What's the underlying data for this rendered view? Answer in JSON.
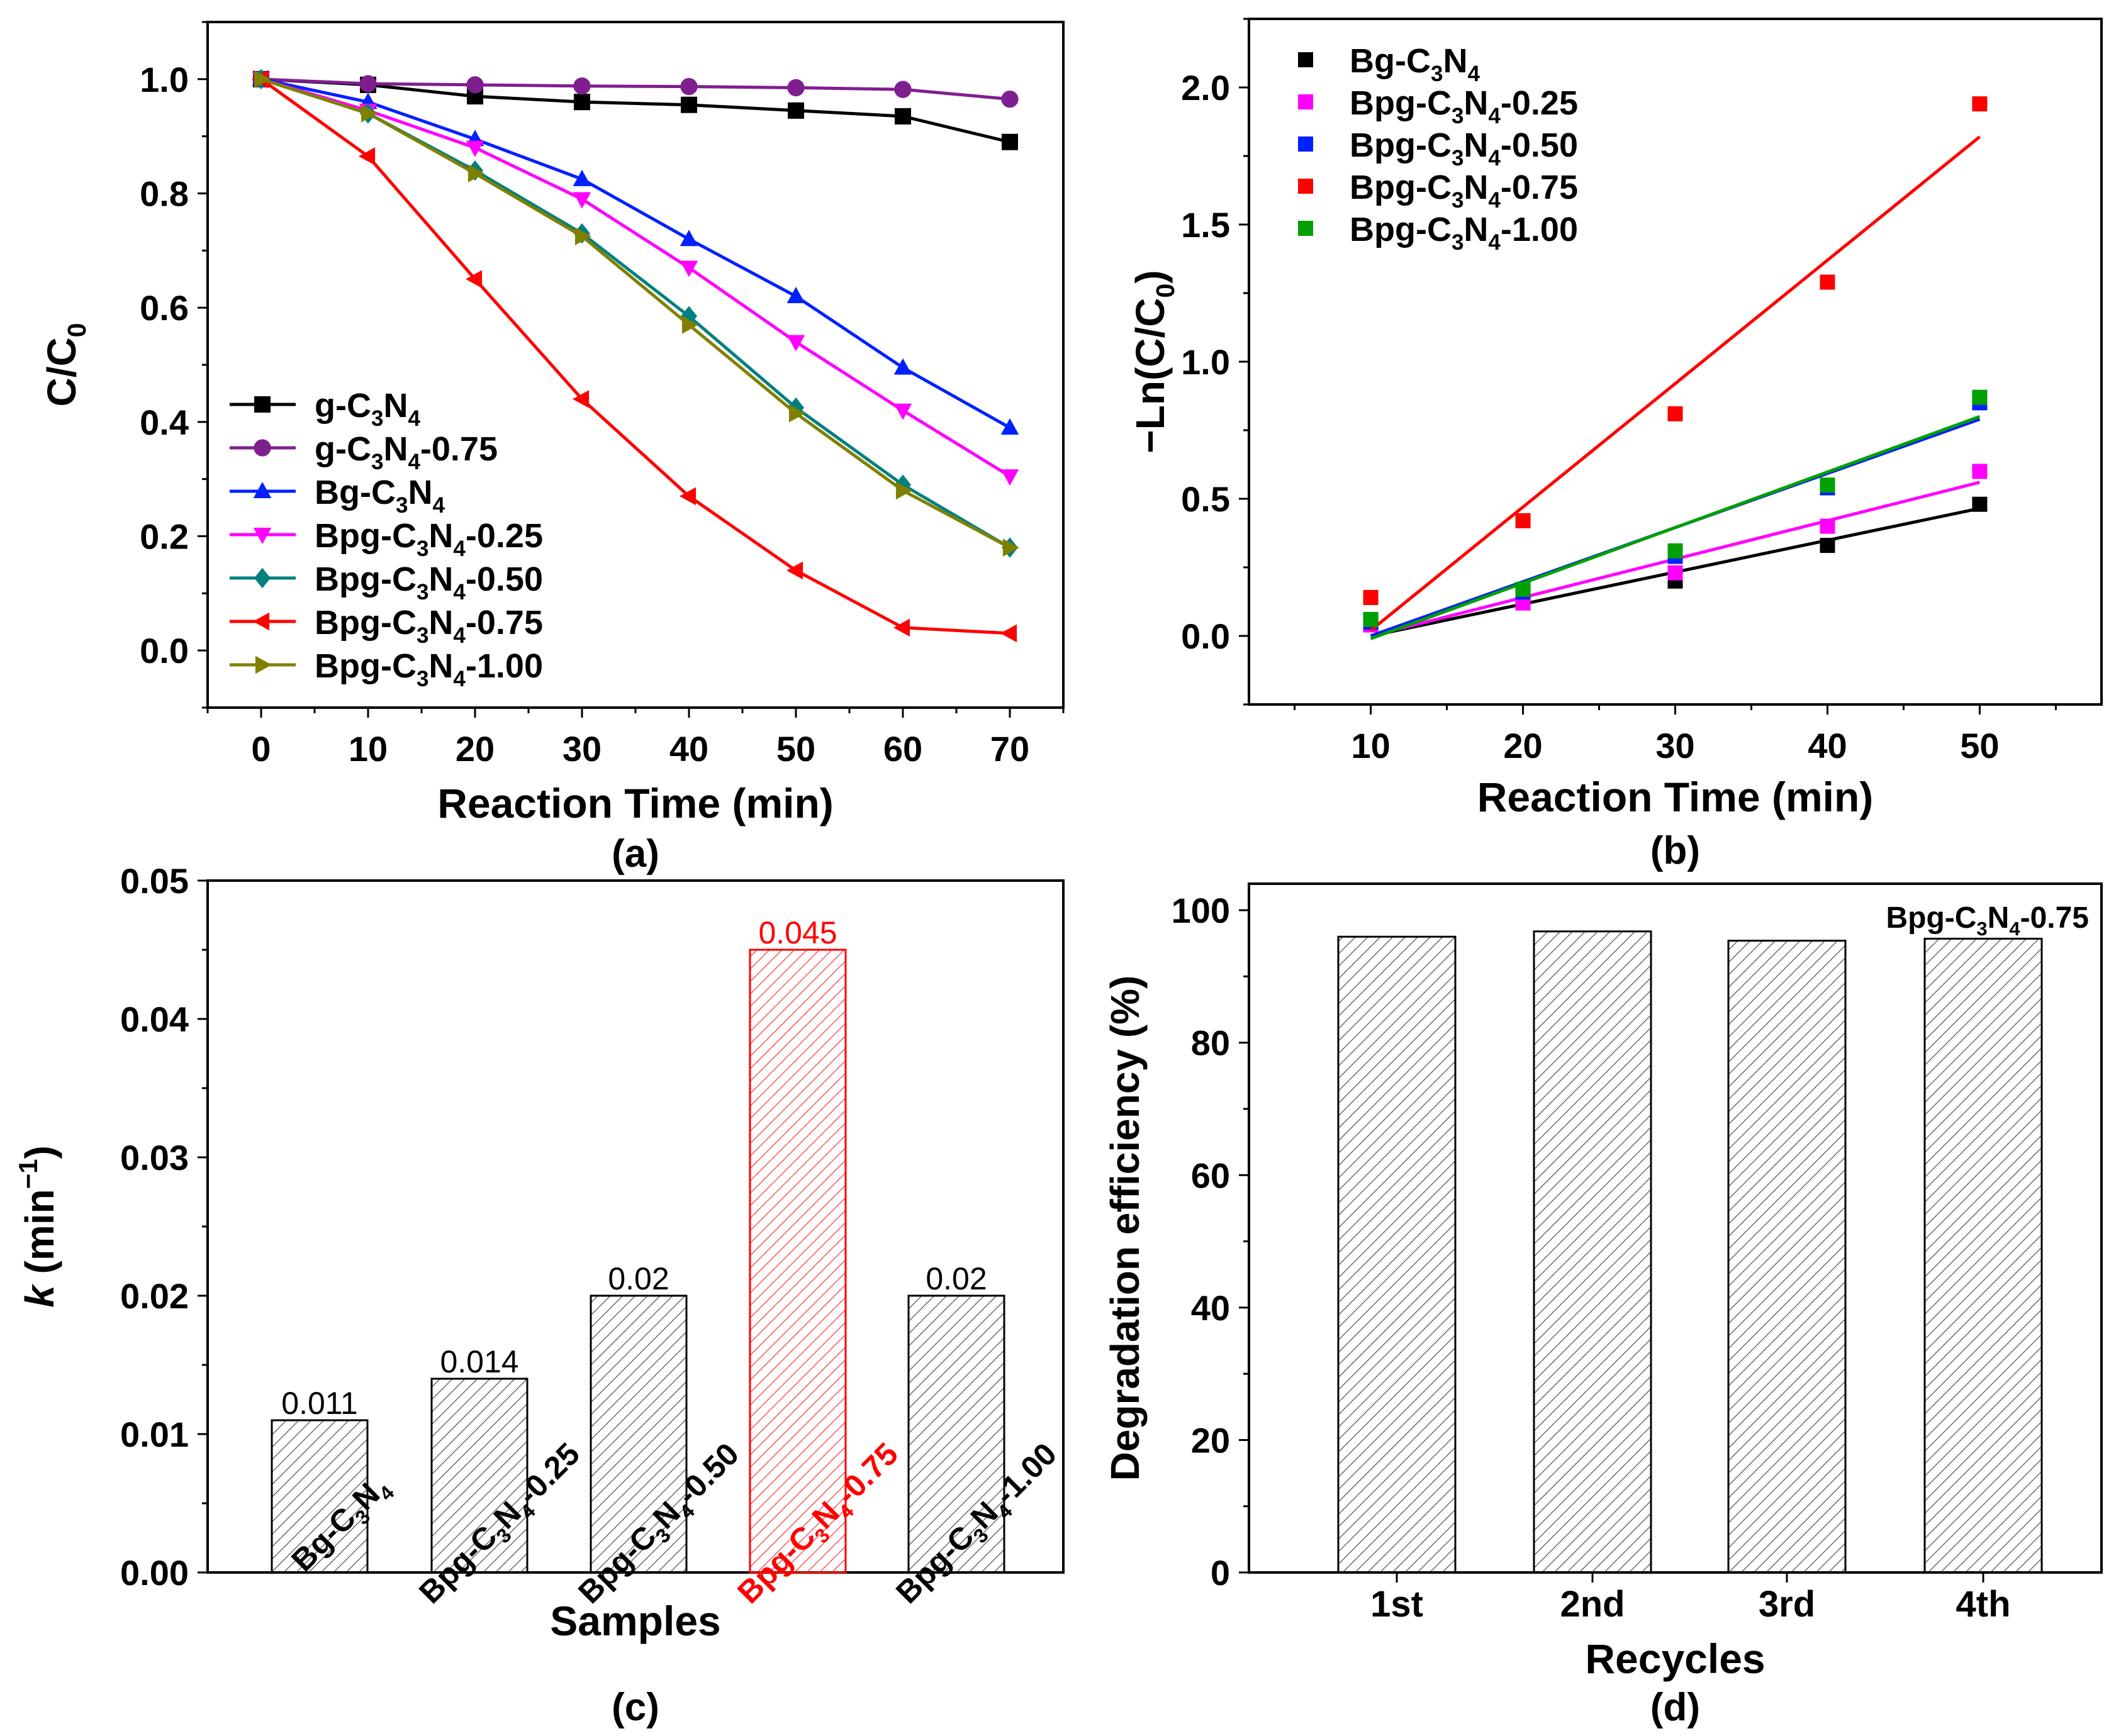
{
  "chart_data": [
    {
      "id": "a",
      "type": "line",
      "panel_label": "(a)",
      "xlabel": "Reaction Time (min)",
      "ylabel_main": "C/C",
      "ylabel_sub": "0",
      "xlim": [
        -5,
        75
      ],
      "ylim": [
        -0.1,
        1.1
      ],
      "x_ticks": [
        "0",
        "10",
        "20",
        "30",
        "40",
        "50",
        "60",
        "70"
      ],
      "y_ticks": [
        "0.0",
        "0.2",
        "0.4",
        "0.6",
        "0.8",
        "1.0"
      ],
      "x": [
        0,
        10,
        20,
        30,
        40,
        50,
        60,
        70
      ],
      "series": [
        {
          "name": "g-C3N4",
          "label": [
            [
              "g-C",
              ""
            ],
            [
              "3",
              "sub"
            ],
            [
              "N",
              ""
            ],
            [
              "4",
              "sub"
            ]
          ],
          "color": "#000000",
          "marker": "square",
          "values": [
            1.0,
            0.99,
            0.97,
            0.96,
            0.955,
            0.945,
            0.935,
            0.89
          ]
        },
        {
          "name": "g-C3N4-0.75",
          "label": [
            [
              "g-C",
              ""
            ],
            [
              "3",
              "sub"
            ],
            [
              "N",
              ""
            ],
            [
              "4",
              "sub"
            ],
            [
              "-0.75",
              ""
            ]
          ],
          "color": "#7f1f8f",
          "marker": "circle",
          "values": [
            1.0,
            0.992,
            0.99,
            0.988,
            0.987,
            0.985,
            0.982,
            0.965
          ]
        },
        {
          "name": "Bg-C3N4",
          "label": [
            [
              "Bg-C",
              ""
            ],
            [
              "3",
              "sub"
            ],
            [
              "N",
              ""
            ],
            [
              "4",
              "sub"
            ]
          ],
          "color": "#0020ff",
          "marker": "triangle-up",
          "values": [
            1.0,
            0.96,
            0.895,
            0.825,
            0.72,
            0.62,
            0.495,
            0.39
          ]
        },
        {
          "name": "Bpg-C3N4-0.25",
          "label": [
            [
              "Bpg-C",
              ""
            ],
            [
              "3",
              "sub"
            ],
            [
              "N",
              ""
            ],
            [
              "4",
              "sub"
            ],
            [
              "-0.25",
              ""
            ]
          ],
          "color": "#ff00ff",
          "marker": "triangle-down",
          "values": [
            1.0,
            0.945,
            0.88,
            0.79,
            0.67,
            0.54,
            0.42,
            0.305
          ]
        },
        {
          "name": "Bpg-C3N4-0.50",
          "label": [
            [
              "Bpg-C",
              ""
            ],
            [
              "3",
              "sub"
            ],
            [
              "N",
              ""
            ],
            [
              "4",
              "sub"
            ],
            [
              "-0.50",
              ""
            ]
          ],
          "color": "#00807f",
          "marker": "diamond",
          "values": [
            1.0,
            0.94,
            0.84,
            0.73,
            0.585,
            0.425,
            0.29,
            0.18
          ]
        },
        {
          "name": "Bpg-C3N4-0.75",
          "label": [
            [
              "Bpg-C",
              ""
            ],
            [
              "3",
              "sub"
            ],
            [
              "N",
              ""
            ],
            [
              "4",
              "sub"
            ],
            [
              "-0.75",
              ""
            ]
          ],
          "color": "#ff0000",
          "marker": "triangle-left",
          "values": [
            1.0,
            0.865,
            0.65,
            0.44,
            0.27,
            0.14,
            0.04,
            0.03
          ]
        },
        {
          "name": "Bpg-C3N4-1.00",
          "label": [
            [
              "Bpg-C",
              ""
            ],
            [
              "3",
              "sub"
            ],
            [
              "N",
              ""
            ],
            [
              "4",
              "sub"
            ],
            [
              "-1.00",
              ""
            ]
          ],
          "color": "#808000",
          "marker": "triangle-right",
          "values": [
            1.0,
            0.94,
            0.835,
            0.725,
            0.57,
            0.415,
            0.28,
            0.18
          ]
        }
      ]
    },
    {
      "id": "b",
      "type": "scatter",
      "panel_label": "(b)",
      "xlabel": "Reaction Time (min)",
      "ylabel_main": "−Ln(C/C",
      "ylabel_sub": "0",
      "ylabel_end": ")",
      "xlim": [
        2,
        58
      ],
      "ylim": [
        -0.25,
        2.25
      ],
      "x_ticks": [
        "10",
        "20",
        "30",
        "40",
        "50"
      ],
      "y_ticks": [
        "0.0",
        "0.5",
        "1.0",
        "1.5",
        "2.0"
      ],
      "x": [
        10,
        20,
        30,
        40,
        50
      ],
      "series": [
        {
          "name": "Bg-C3N4",
          "label": [
            [
              "Bg-C",
              ""
            ],
            [
              "3",
              "sub"
            ],
            [
              "N",
              ""
            ],
            [
              "4",
              "sub"
            ]
          ],
          "color": "#000000",
          "values": [
            0.05,
            0.14,
            0.2,
            0.33,
            0.48
          ],
          "fit": [
            0.0,
            0.465
          ]
        },
        {
          "name": "Bpg-C3N4-0.25",
          "label": [
            [
              "Bpg-C",
              ""
            ],
            [
              "3",
              "sub"
            ],
            [
              "N",
              ""
            ],
            [
              "4",
              "sub"
            ],
            [
              "-0.25",
              ""
            ]
          ],
          "color": "#ff00ff",
          "values": [
            0.04,
            0.12,
            0.23,
            0.4,
            0.6
          ],
          "fit": [
            0.0,
            0.56
          ]
        },
        {
          "name": "Bpg-C3N4-0.50",
          "label": [
            [
              "Bpg-C",
              ""
            ],
            [
              "3",
              "sub"
            ],
            [
              "N",
              ""
            ],
            [
              "4",
              "sub"
            ],
            [
              "-0.50",
              ""
            ]
          ],
          "color": "#0020ff",
          "values": [
            0.05,
            0.16,
            0.29,
            0.54,
            0.85
          ],
          "fit": [
            0.0,
            0.79
          ]
        },
        {
          "name": "Bpg-C3N4-0.75",
          "label": [
            [
              "Bpg-C",
              ""
            ],
            [
              "3",
              "sub"
            ],
            [
              "N",
              ""
            ],
            [
              "4",
              "sub"
            ],
            [
              "-0.75",
              ""
            ]
          ],
          "color": "#ff0000",
          "values": [
            0.14,
            0.42,
            0.81,
            1.29,
            1.94
          ],
          "fit": [
            0.02,
            1.82
          ]
        },
        {
          "name": "Bpg-C3N4-1.00",
          "label": [
            [
              "Bpg-C",
              ""
            ],
            [
              "3",
              "sub"
            ],
            [
              "N",
              ""
            ],
            [
              "4",
              "sub"
            ],
            [
              "-1.00",
              ""
            ]
          ],
          "color": "#00a000",
          "values": [
            0.06,
            0.17,
            0.31,
            0.55,
            0.87
          ],
          "fit": [
            -0.01,
            0.8
          ]
        }
      ]
    },
    {
      "id": "c",
      "type": "bar",
      "panel_label": "(c)",
      "xlabel": "Samples",
      "ylabel_main": "k",
      "ylabel_rest": " (min",
      "ylabel_sup": "−1",
      "ylabel_end": ")",
      "ylim": [
        0,
        0.05
      ],
      "y_ticks": [
        "0.00",
        "0.01",
        "0.02",
        "0.03",
        "0.04",
        "0.05"
      ],
      "categories": [
        "Bg-C3N4",
        "Bpg-C3N4-0.25",
        "Bpg-C3N4-0.50",
        "Bpg-C3N4-0.75",
        "Bpg-C3N4-1.00"
      ],
      "category_labels": [
        [
          [
            "Bg-C",
            ""
          ],
          [
            "3",
            "sub"
          ],
          [
            "N",
            ""
          ],
          [
            "4",
            "sub"
          ]
        ],
        [
          [
            "Bpg-C",
            ""
          ],
          [
            "3",
            "sub"
          ],
          [
            "N",
            ""
          ],
          [
            "4",
            "sub"
          ],
          [
            "-0.25",
            ""
          ]
        ],
        [
          [
            "Bpg-C",
            ""
          ],
          [
            "3",
            "sub"
          ],
          [
            "N",
            ""
          ],
          [
            "4",
            "sub"
          ],
          [
            "-0.50",
            ""
          ]
        ],
        [
          [
            "Bpg-C",
            ""
          ],
          [
            "3",
            "sub"
          ],
          [
            "N",
            ""
          ],
          [
            "4",
            "sub"
          ],
          [
            "-0.75",
            ""
          ]
        ],
        [
          [
            "Bpg-C",
            ""
          ],
          [
            "3",
            "sub"
          ],
          [
            "N",
            ""
          ],
          [
            "4",
            "sub"
          ],
          [
            "-1.00",
            ""
          ]
        ]
      ],
      "values": [
        0.011,
        0.014,
        0.02,
        0.045,
        0.02
      ],
      "value_labels": [
        "0.011",
        "0.014",
        "0.02",
        "0.045",
        "0.02"
      ],
      "highlight_index": 3,
      "highlight_color": "#ff0000"
    },
    {
      "id": "d",
      "type": "bar",
      "panel_label": "(d)",
      "xlabel": "Recycles",
      "ylabel_main": "Degradation efficiency (%)",
      "ylim": [
        0,
        104
      ],
      "y_ticks": [
        "0",
        "20",
        "40",
        "60",
        "80",
        "100"
      ],
      "categories": [
        "1st",
        "2nd",
        "3rd",
        "4th"
      ],
      "values": [
        96.0,
        96.8,
        95.4,
        95.7
      ],
      "annotation": [
        [
          "Bpg-C",
          ""
        ],
        [
          "3",
          "sub"
        ],
        [
          "N",
          ""
        ],
        [
          "4",
          "sub"
        ],
        [
          "-0.75",
          ""
        ]
      ]
    }
  ]
}
